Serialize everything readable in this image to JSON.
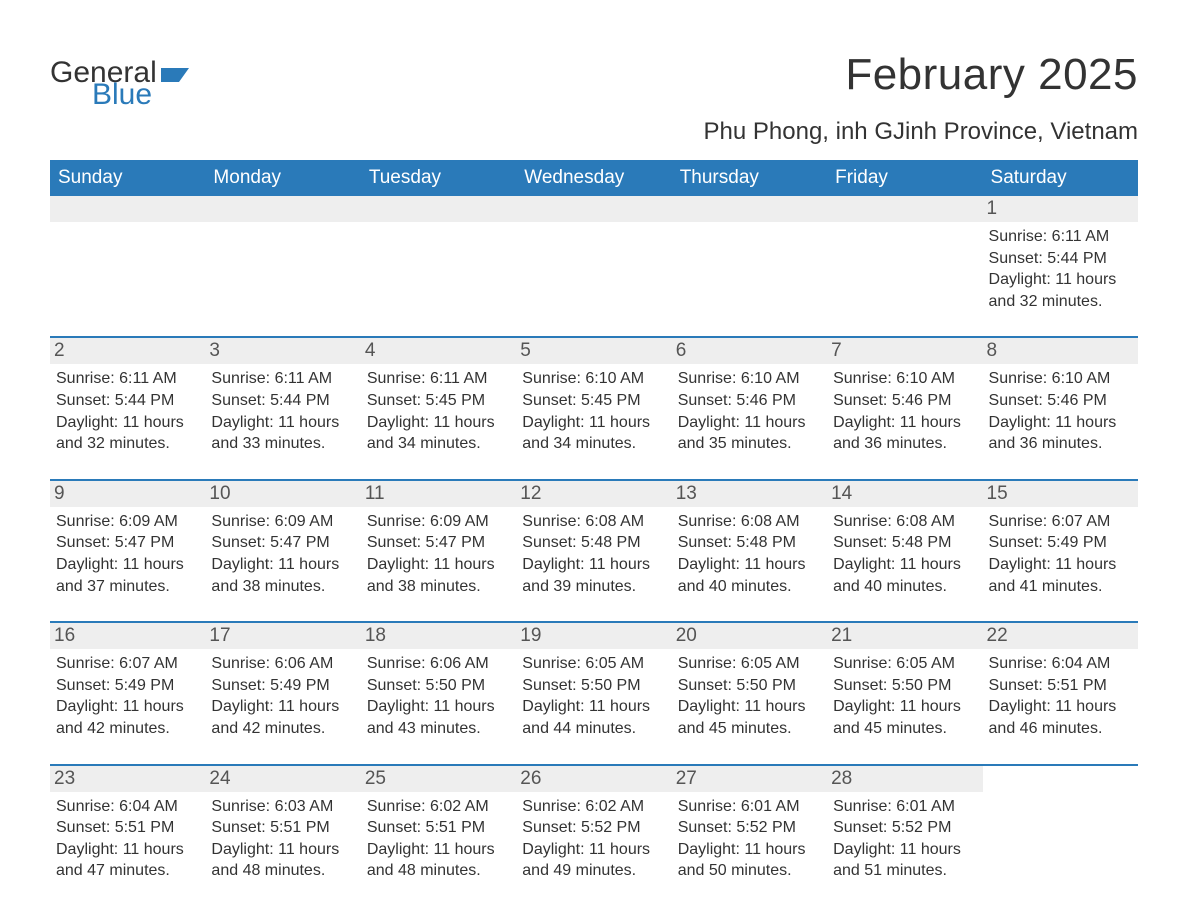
{
  "logo": {
    "text1": "General",
    "text2": "Blue",
    "icon_color": "#2a7ab9"
  },
  "title": "February 2025",
  "location": "Phu Phong, inh GJinh Province, Vietnam",
  "colors": {
    "header_bg": "#2a7ab9",
    "header_text": "#ffffff",
    "row_divider": "#2a7ab9",
    "daynum_bg": "#eeeeee",
    "body_text": "#333333"
  },
  "weekdays": [
    "Sunday",
    "Monday",
    "Tuesday",
    "Wednesday",
    "Thursday",
    "Friday",
    "Saturday"
  ],
  "weeks": [
    [
      null,
      null,
      null,
      null,
      null,
      null,
      {
        "n": "1",
        "sunrise": "6:11 AM",
        "sunset": "5:44 PM",
        "daylight": "11 hours and 32 minutes."
      }
    ],
    [
      {
        "n": "2",
        "sunrise": "6:11 AM",
        "sunset": "5:44 PM",
        "daylight": "11 hours and 32 minutes."
      },
      {
        "n": "3",
        "sunrise": "6:11 AM",
        "sunset": "5:44 PM",
        "daylight": "11 hours and 33 minutes."
      },
      {
        "n": "4",
        "sunrise": "6:11 AM",
        "sunset": "5:45 PM",
        "daylight": "11 hours and 34 minutes."
      },
      {
        "n": "5",
        "sunrise": "6:10 AM",
        "sunset": "5:45 PM",
        "daylight": "11 hours and 34 minutes."
      },
      {
        "n": "6",
        "sunrise": "6:10 AM",
        "sunset": "5:46 PM",
        "daylight": "11 hours and 35 minutes."
      },
      {
        "n": "7",
        "sunrise": "6:10 AM",
        "sunset": "5:46 PM",
        "daylight": "11 hours and 36 minutes."
      },
      {
        "n": "8",
        "sunrise": "6:10 AM",
        "sunset": "5:46 PM",
        "daylight": "11 hours and 36 minutes."
      }
    ],
    [
      {
        "n": "9",
        "sunrise": "6:09 AM",
        "sunset": "5:47 PM",
        "daylight": "11 hours and 37 minutes."
      },
      {
        "n": "10",
        "sunrise": "6:09 AM",
        "sunset": "5:47 PM",
        "daylight": "11 hours and 38 minutes."
      },
      {
        "n": "11",
        "sunrise": "6:09 AM",
        "sunset": "5:47 PM",
        "daylight": "11 hours and 38 minutes."
      },
      {
        "n": "12",
        "sunrise": "6:08 AM",
        "sunset": "5:48 PM",
        "daylight": "11 hours and 39 minutes."
      },
      {
        "n": "13",
        "sunrise": "6:08 AM",
        "sunset": "5:48 PM",
        "daylight": "11 hours and 40 minutes."
      },
      {
        "n": "14",
        "sunrise": "6:08 AM",
        "sunset": "5:48 PM",
        "daylight": "11 hours and 40 minutes."
      },
      {
        "n": "15",
        "sunrise": "6:07 AM",
        "sunset": "5:49 PM",
        "daylight": "11 hours and 41 minutes."
      }
    ],
    [
      {
        "n": "16",
        "sunrise": "6:07 AM",
        "sunset": "5:49 PM",
        "daylight": "11 hours and 42 minutes."
      },
      {
        "n": "17",
        "sunrise": "6:06 AM",
        "sunset": "5:49 PM",
        "daylight": "11 hours and 42 minutes."
      },
      {
        "n": "18",
        "sunrise": "6:06 AM",
        "sunset": "5:50 PM",
        "daylight": "11 hours and 43 minutes."
      },
      {
        "n": "19",
        "sunrise": "6:05 AM",
        "sunset": "5:50 PM",
        "daylight": "11 hours and 44 minutes."
      },
      {
        "n": "20",
        "sunrise": "6:05 AM",
        "sunset": "5:50 PM",
        "daylight": "11 hours and 45 minutes."
      },
      {
        "n": "21",
        "sunrise": "6:05 AM",
        "sunset": "5:50 PM",
        "daylight": "11 hours and 45 minutes."
      },
      {
        "n": "22",
        "sunrise": "6:04 AM",
        "sunset": "5:51 PM",
        "daylight": "11 hours and 46 minutes."
      }
    ],
    [
      {
        "n": "23",
        "sunrise": "6:04 AM",
        "sunset": "5:51 PM",
        "daylight": "11 hours and 47 minutes."
      },
      {
        "n": "24",
        "sunrise": "6:03 AM",
        "sunset": "5:51 PM",
        "daylight": "11 hours and 48 minutes."
      },
      {
        "n": "25",
        "sunrise": "6:02 AM",
        "sunset": "5:51 PM",
        "daylight": "11 hours and 48 minutes."
      },
      {
        "n": "26",
        "sunrise": "6:02 AM",
        "sunset": "5:52 PM",
        "daylight": "11 hours and 49 minutes."
      },
      {
        "n": "27",
        "sunrise": "6:01 AM",
        "sunset": "5:52 PM",
        "daylight": "11 hours and 50 minutes."
      },
      {
        "n": "28",
        "sunrise": "6:01 AM",
        "sunset": "5:52 PM",
        "daylight": "11 hours and 51 minutes."
      },
      null
    ]
  ],
  "labels": {
    "sunrise": "Sunrise:",
    "sunset": "Sunset:",
    "daylight": "Daylight:"
  }
}
